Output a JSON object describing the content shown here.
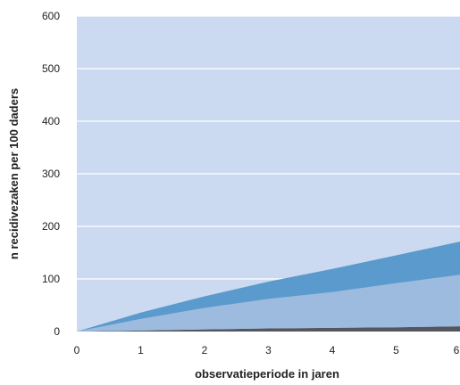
{
  "chart_data": {
    "type": "area",
    "stacked": true,
    "title": "",
    "xlabel": "observatieperiode in jaren",
    "ylabel": "n recidivezaken per 100 daders",
    "x": [
      0,
      1,
      2,
      3,
      4,
      5,
      6
    ],
    "xlim": [
      0,
      6
    ],
    "ylim": [
      0,
      600
    ],
    "xticks": [
      "0",
      "1",
      "2",
      "3",
      "4",
      "5",
      "6"
    ],
    "yticks": [
      "0",
      "100",
      "200",
      "300",
      "400",
      "500",
      "600"
    ],
    "grid": true,
    "legend": "none",
    "series": [
      {
        "values": [
          0,
          2,
          4,
          6,
          7,
          8,
          10
        ],
        "color": "#56575c"
      },
      {
        "values": [
          0,
          22,
          41,
          56,
          68,
          84,
          98
        ],
        "color": "#9dbadf"
      },
      {
        "values": [
          0,
          12,
          22,
          33,
          44,
          53,
          63
        ],
        "color": "#5b9acc"
      }
    ],
    "background_color": "#cbdaf0",
    "grid_color": "#ffffff"
  }
}
